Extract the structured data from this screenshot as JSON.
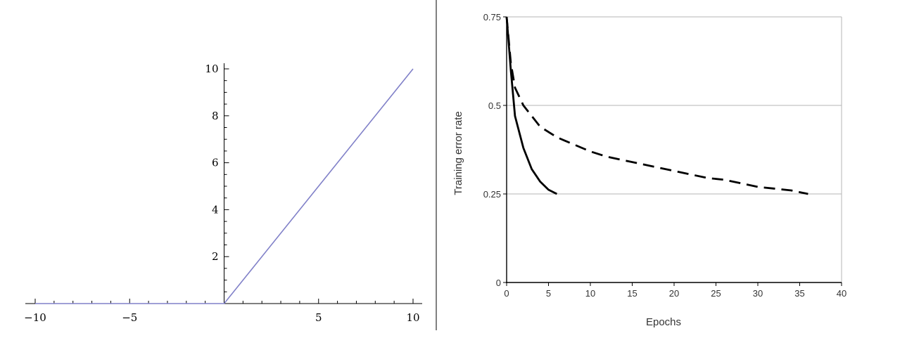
{
  "chart_data": [
    {
      "type": "line",
      "title": "",
      "xlabel": "",
      "ylabel": "",
      "xlim": [
        -10,
        10
      ],
      "ylim": [
        0,
        10
      ],
      "x_ticks": [
        -10,
        -5,
        5,
        10
      ],
      "x_tick_labels": [
        "−10",
        "−5",
        "5",
        "10"
      ],
      "y_ticks": [
        2,
        4,
        6,
        8,
        10
      ],
      "y_tick_labels": [
        "2",
        "4",
        "6",
        "8",
        "10"
      ],
      "grid": false,
      "colors": {
        "line": "#8080c8",
        "axis": "#000000"
      },
      "series": [
        {
          "x": [
            -10,
            0,
            10
          ],
          "y": [
            0,
            0,
            10
          ]
        }
      ]
    },
    {
      "type": "line",
      "title": "",
      "xlabel": "Epochs",
      "ylabel": "Training error rate",
      "xlim": [
        0,
        40
      ],
      "ylim": [
        0,
        0.75
      ],
      "x_ticks": [
        0,
        5,
        10,
        15,
        20,
        25,
        30,
        35,
        40
      ],
      "x_tick_labels": [
        "0",
        "5",
        "10",
        "15",
        "20",
        "25",
        "30",
        "35",
        "40"
      ],
      "y_ticks": [
        0,
        0.25,
        0.5,
        0.75
      ],
      "y_tick_labels": [
        "0",
        "0.25",
        "0.5",
        "0.75"
      ],
      "grid": true,
      "colors": {
        "line": "#000000",
        "grid": "#b4b4b4"
      },
      "series": [
        {
          "style": "solid",
          "x": [
            0,
            0.5,
            1,
            2,
            3,
            4,
            5,
            6
          ],
          "y": [
            0.75,
            0.6,
            0.47,
            0.38,
            0.32,
            0.285,
            0.262,
            0.25
          ]
        },
        {
          "style": "dashed",
          "x": [
            0,
            0.5,
            1,
            2,
            3,
            4,
            5,
            6,
            7,
            8,
            9,
            10,
            12,
            14,
            16,
            18,
            20,
            22,
            24,
            26,
            28,
            30,
            32,
            34,
            36
          ],
          "y": [
            0.75,
            0.62,
            0.55,
            0.5,
            0.47,
            0.44,
            0.425,
            0.41,
            0.4,
            0.39,
            0.38,
            0.37,
            0.355,
            0.345,
            0.335,
            0.325,
            0.315,
            0.305,
            0.295,
            0.29,
            0.28,
            0.27,
            0.265,
            0.26,
            0.25
          ]
        }
      ]
    }
  ]
}
